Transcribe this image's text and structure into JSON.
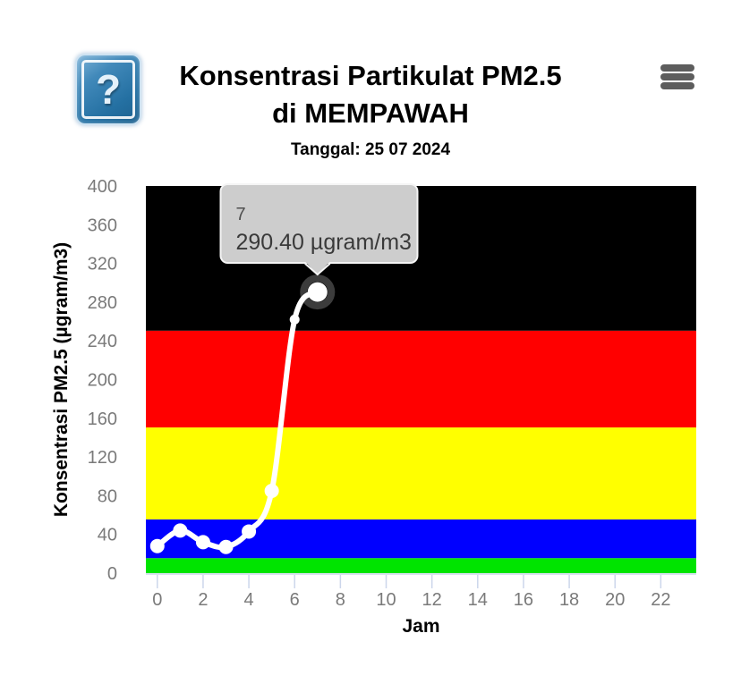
{
  "header": {
    "help_icon_glyph": "?",
    "title_line1": "Konsentrasi Partikulat PM2.5",
    "title_line2": "di MEMPAWAH",
    "subtitle": "Tanggal: 25 07 2024"
  },
  "colors": {
    "tooltip_bg": "#cdcdcd",
    "tooltip_border": "#f5f5f5",
    "tick_label": "#7a7a7a",
    "tick_mark": "#ccd6eb",
    "highlight_ring": "#3c3c3c",
    "menu_icon": "#5d5d5d",
    "help_icon_blue": "#2470a2"
  },
  "chart_data": {
    "type": "line",
    "title": "Konsentrasi Partikulat PM2.5 di MEMPAWAH",
    "subtitle": "Tanggal: 25 07 2024",
    "xlabel": "Jam",
    "ylabel": "Konsentrasi PM2.5 (µgram/m3)",
    "x": [
      0,
      1,
      2,
      3,
      4,
      5,
      6,
      7
    ],
    "values": [
      28,
      44,
      32,
      27,
      43,
      85,
      262,
      290.4
    ],
    "xlim": [
      -0.5,
      23.55
    ],
    "ylim": [
      0,
      400
    ],
    "x_ticks": [
      0,
      2,
      4,
      6,
      8,
      10,
      12,
      14,
      16,
      18,
      20,
      22
    ],
    "y_ticks": [
      0,
      40,
      80,
      120,
      160,
      200,
      240,
      280,
      320,
      360,
      400
    ],
    "grid": false,
    "legend": false,
    "line_color": "#ffffff",
    "marker_color": "#ffffff",
    "bands": [
      {
        "from": 0,
        "to": 15.5,
        "color": "#00e400"
      },
      {
        "from": 15.5,
        "to": 55.5,
        "color": "#0000ff"
      },
      {
        "from": 55.5,
        "to": 150.5,
        "color": "#ffff00"
      },
      {
        "from": 150.5,
        "to": 250.5,
        "color": "#ff0000"
      },
      {
        "from": 250.5,
        "to": 400,
        "color": "#000000"
      }
    ],
    "highlight": {
      "x": 7,
      "value": 290.4,
      "tooltip_label": "7",
      "tooltip_value": "290.40 µgram/m3"
    }
  }
}
